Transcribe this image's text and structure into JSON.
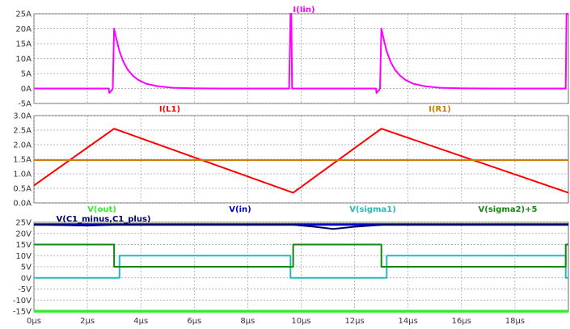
{
  "chart_data": [
    {
      "type": "line",
      "ylim": [
        -5,
        25
      ],
      "y_ticks": [
        "-5A",
        "0A",
        "5A",
        "10A",
        "15A",
        "20A",
        "25A"
      ],
      "y_tick_values": [
        -5,
        0,
        5,
        10,
        15,
        20,
        25
      ],
      "grid": true,
      "series": [
        {
          "name": "I(Iin)",
          "color": "#ff00ff",
          "points": [
            [
              0,
              0
            ],
            [
              2.8,
              0
            ],
            [
              2.82,
              -1.5
            ],
            [
              2.92,
              -0.5
            ],
            [
              2.95,
              0
            ],
            [
              3.0,
              20
            ],
            [
              3.1,
              16
            ],
            [
              3.2,
              12.4
            ],
            [
              3.35,
              8.9
            ],
            [
              3.5,
              6.4
            ],
            [
              3.7,
              4.3
            ],
            [
              3.9,
              2.9
            ],
            [
              4.2,
              1.6
            ],
            [
              4.6,
              0.8
            ],
            [
              5.2,
              0.25
            ],
            [
              6.0,
              0.08
            ],
            [
              7,
              0
            ],
            [
              9.55,
              0
            ],
            [
              9.6,
              25
            ],
            [
              9.63,
              25
            ],
            [
              9.66,
              0
            ],
            [
              12.8,
              0
            ],
            [
              12.82,
              -1.5
            ],
            [
              12.92,
              -0.5
            ],
            [
              12.95,
              0
            ],
            [
              13.0,
              20
            ],
            [
              13.1,
              16
            ],
            [
              13.2,
              12.4
            ],
            [
              13.35,
              8.9
            ],
            [
              13.5,
              6.4
            ],
            [
              13.7,
              4.3
            ],
            [
              13.9,
              2.9
            ],
            [
              14.2,
              1.6
            ],
            [
              14.6,
              0.8
            ],
            [
              15.2,
              0.25
            ],
            [
              16.0,
              0.08
            ],
            [
              17,
              0
            ],
            [
              19.9,
              0
            ],
            [
              19.93,
              25
            ],
            [
              20,
              25
            ]
          ]
        }
      ]
    },
    {
      "type": "line",
      "ylim": [
        0,
        3.0
      ],
      "y_ticks": [
        "0.0A",
        "0.5A",
        "1.0A",
        "1.5A",
        "2.0A",
        "2.5A",
        "3.0A"
      ],
      "y_tick_values": [
        0,
        0.5,
        1.0,
        1.5,
        2.0,
        2.5,
        3.0
      ],
      "grid": true,
      "series": [
        {
          "name": "I(L1)",
          "color": "#ff0000",
          "points": [
            [
              0,
              0.6
            ],
            [
              3.0,
              2.55
            ],
            [
              9.7,
              0.35
            ],
            [
              13.0,
              2.55
            ],
            [
              20,
              0.35
            ]
          ]
        },
        {
          "name": "I(R1)",
          "color": "#cc7a00",
          "points": [
            [
              0,
              1.47
            ],
            [
              20,
              1.47
            ]
          ]
        }
      ]
    },
    {
      "type": "line",
      "ylim": [
        -15,
        25
      ],
      "y_ticks": [
        "-15V",
        "-10V",
        "-5V",
        "0V",
        "5V",
        "10V",
        "15V",
        "20V",
        "25V"
      ],
      "y_tick_values": [
        -15,
        -10,
        -5,
        0,
        5,
        10,
        15,
        20,
        25
      ],
      "x_ticks": [
        "0µs",
        "2µs",
        "4µs",
        "6µs",
        "8µs",
        "10µs",
        "12µs",
        "14µs",
        "16µs",
        "18µs"
      ],
      "x_tick_values": [
        0,
        2,
        4,
        6,
        8,
        10,
        12,
        14,
        16,
        18
      ],
      "xlim": [
        0,
        20
      ],
      "grid": true,
      "series": [
        {
          "name": "V(out)",
          "color": "#33ee33",
          "points": [
            [
              0,
              -15
            ],
            [
              20,
              -15
            ]
          ]
        },
        {
          "name": "V(in)",
          "color": "#0000cc",
          "points": [
            [
              0,
              24
            ],
            [
              20,
              24
            ]
          ]
        },
        {
          "name": "V(sigma1)",
          "color": "#22bbbb",
          "points": [
            [
              0,
              0
            ],
            [
              3.2,
              0
            ],
            [
              3.2,
              10
            ],
            [
              9.6,
              10
            ],
            [
              9.6,
              0
            ],
            [
              13.2,
              0
            ],
            [
              13.2,
              10
            ],
            [
              19.9,
              10
            ],
            [
              19.9,
              0
            ],
            [
              20,
              0
            ]
          ]
        },
        {
          "name": "V(sigma2)+5",
          "color": "#118811",
          "points": [
            [
              0,
              15
            ],
            [
              3.0,
              15
            ],
            [
              3.0,
              5
            ],
            [
              9.7,
              5
            ],
            [
              9.7,
              15
            ],
            [
              13.0,
              15
            ],
            [
              13.0,
              5
            ],
            [
              19.9,
              5
            ],
            [
              19.9,
              15
            ],
            [
              20,
              15
            ]
          ]
        },
        {
          "name": "V(C1_minus,C1_plus)",
          "color": "#000066",
          "points": [
            [
              0,
              24
            ],
            [
              2,
              23.5
            ],
            [
              3.2,
              24
            ],
            [
              9.6,
              24
            ],
            [
              10.5,
              23
            ],
            [
              11.2,
              22
            ],
            [
              12,
              23
            ],
            [
              13.2,
              24
            ],
            [
              16,
              24
            ],
            [
              20,
              24
            ]
          ]
        }
      ]
    }
  ]
}
